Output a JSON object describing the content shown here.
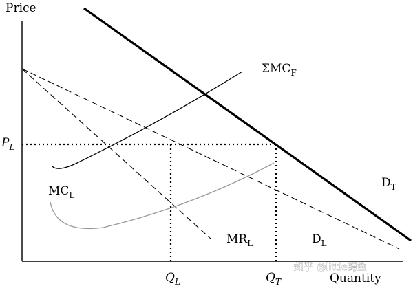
{
  "axes": {
    "y_label": "Price",
    "x_label": "Quantity"
  },
  "ticks": {
    "price_main": "P",
    "price_sub": "L",
    "q_left_main": "Q",
    "q_left_sub": "L",
    "q_total_main": "Q",
    "q_total_sub": "T"
  },
  "curves": {
    "sum_mc_main": "ΣMC",
    "sum_mc_sub": "F",
    "mc_main": "MC",
    "mc_sub": "L",
    "mr_main": "MR",
    "mr_sub": "L",
    "d_leader_main": "D",
    "d_leader_sub": "L",
    "d_total_main": "D",
    "d_total_sub": "T"
  },
  "watermark": {
    "text": "知乎 @little鳄鱼"
  },
  "colors": {
    "ink": "#000000",
    "mc_leader": "#999999"
  }
}
